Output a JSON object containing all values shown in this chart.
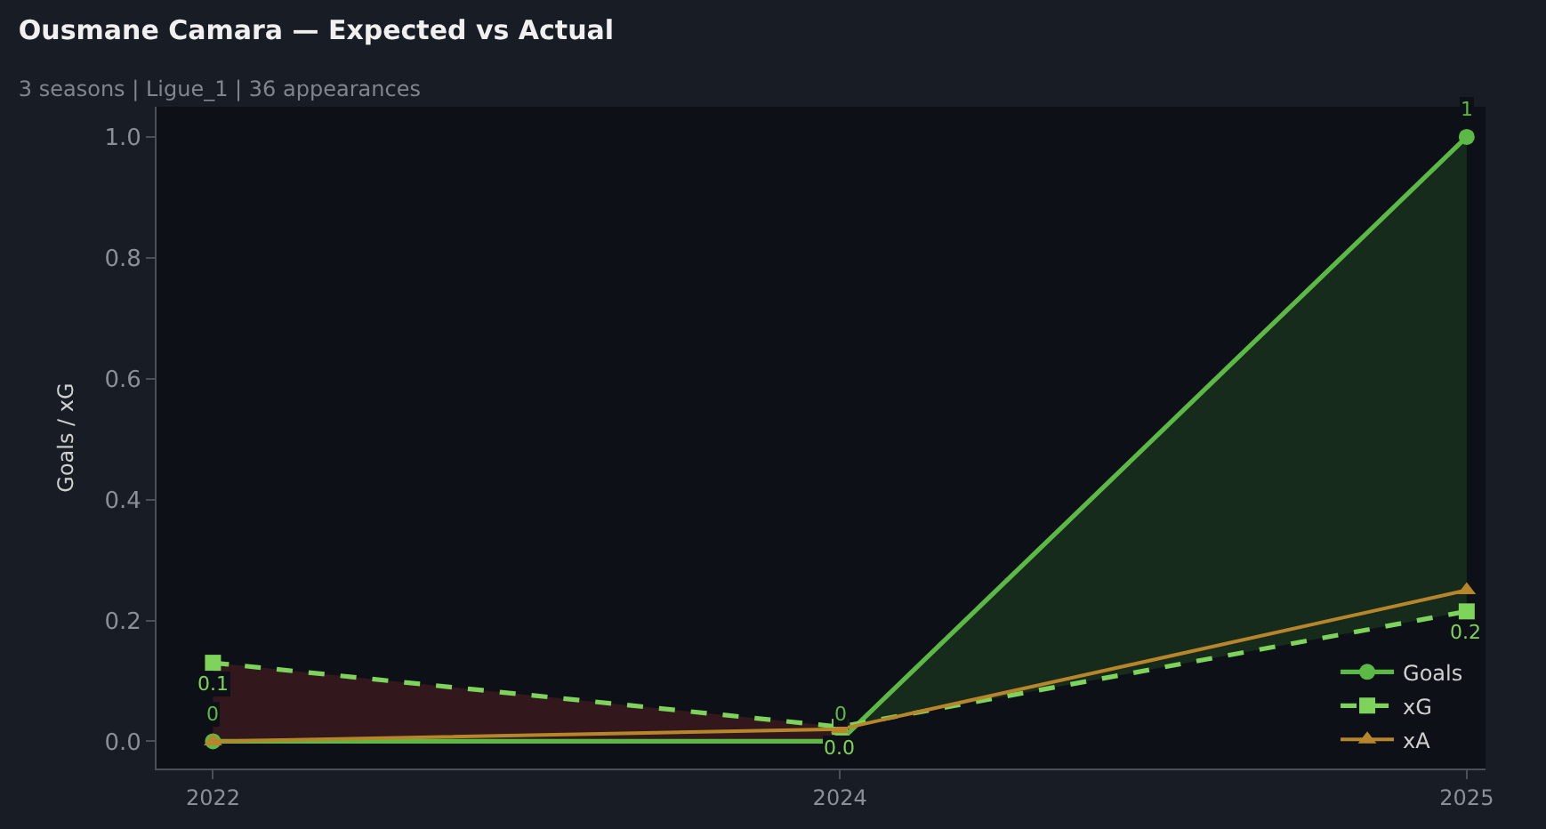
{
  "chart_data": {
    "type": "line",
    "title": "Ousmane Camara — Expected vs Actual",
    "subtitle": "3 seasons | Ligue_1 | 36 appearances",
    "ylabel": "Goals / xG",
    "categories": [
      "2022",
      "2024",
      "2025"
    ],
    "series": [
      {
        "name": "Goals",
        "color": "#5cb946",
        "values": [
          0,
          0,
          1
        ],
        "value_labels": [
          "0",
          "0",
          "1"
        ],
        "marker": "circle",
        "line_style": "solid"
      },
      {
        "name": "xG",
        "color": "#7ed35a",
        "values": [
          0.13,
          0.024,
          0.215
        ],
        "value_labels": [
          "0.1",
          "0.0",
          "0.2"
        ],
        "marker": "square",
        "line_style": "dashed"
      },
      {
        "name": "xA",
        "color": "#b8862a",
        "values": [
          0,
          0.02,
          0.25
        ],
        "marker": "triangle",
        "line_style": "solid"
      }
    ],
    "ylim": [
      -0.045,
      1.05
    ],
    "yticks": [
      {
        "value": 0,
        "label": "0.0"
      },
      0.2,
      0.4,
      0.6,
      0.8,
      {
        "value": 1,
        "label": "1.0"
      }
    ],
    "grid": false,
    "legend": "bottom right"
  }
}
